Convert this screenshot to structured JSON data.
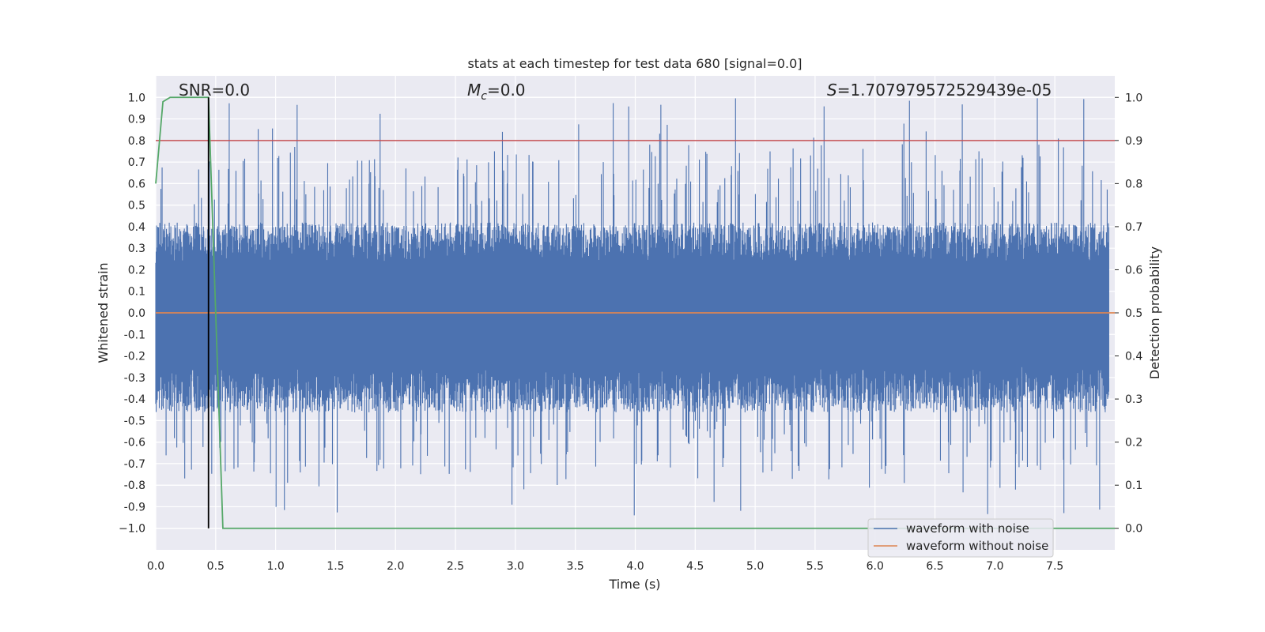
{
  "chart_data": {
    "type": "line",
    "title": "stats at each timestep for test data 680 [signal=0.0]",
    "xlabel": "Time (s)",
    "ylabel": "Whitened strain",
    "y2label": "Detection probability",
    "xlim": [
      0.0,
      8.0
    ],
    "ylim": [
      -1.1,
      1.1
    ],
    "y2lim": [
      -0.05,
      1.05
    ],
    "x_ticks": [
      "0.0",
      "0.5",
      "1.0",
      "1.5",
      "2.0",
      "2.5",
      "3.0",
      "3.5",
      "4.0",
      "4.5",
      "5.0",
      "5.5",
      "6.0",
      "6.5",
      "7.0",
      "7.5"
    ],
    "y_ticks": [
      "1.0",
      "0.9",
      "0.8",
      "0.7",
      "0.6",
      "0.5",
      "0.4",
      "0.3",
      "0.2",
      "0.1",
      "0.0",
      "-0.1",
      "-0.2",
      "-0.3",
      "-0.4",
      "-0.5",
      "-0.6",
      "-0.7",
      "-0.8",
      "-0.9",
      "−1.0"
    ],
    "y2_ticks": [
      "1.0",
      "0.9",
      "0.8",
      "0.7",
      "0.6",
      "0.5",
      "0.4",
      "0.3",
      "0.2",
      "0.1",
      "0.0"
    ],
    "grid": true,
    "legend_position": "lower-right",
    "annotations": {
      "snr": "SNR=0.0",
      "mc_symbol": "M",
      "mc_sub": "c",
      "mc_value": "=0.0",
      "s_symbol": "S",
      "s_value": "=1.707979572529439e-05"
    },
    "series": [
      {
        "name": "waveform with noise",
        "color": "#4c72b0",
        "axis": "left",
        "style": "dense-noise",
        "envelope_typical": 0.42,
        "envelope_peak_high": 1.0,
        "envelope_peak_low": -0.95
      },
      {
        "name": "waveform without noise",
        "color": "#dd8452",
        "axis": "left",
        "x": [
          0.0,
          8.0
        ],
        "y": [
          0.0,
          0.0
        ]
      },
      {
        "name": "",
        "color": "#55a868",
        "axis": "right",
        "x": [
          0.0,
          0.06,
          0.12,
          0.2,
          0.44,
          0.56,
          8.0
        ],
        "y": [
          0.8,
          0.99,
          1.0,
          1.0,
          1.0,
          0.0,
          0.0
        ]
      }
    ],
    "threshold_right": {
      "value": 0.9,
      "color": "#c44e52"
    },
    "marker_time": {
      "x": 0.44,
      "color": "#000000"
    }
  }
}
